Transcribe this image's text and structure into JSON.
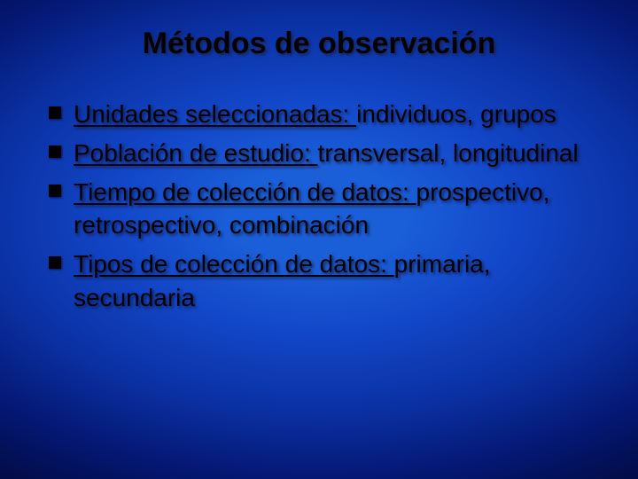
{
  "slide": {
    "title": "Métodos de observación",
    "title_color": "#000000",
    "title_fontsize": 34,
    "body_fontsize": 28,
    "text_color": "#000000",
    "bullet_color": "#000000",
    "bullet_shape": "square",
    "bullet_size": 14,
    "background": {
      "type": "radial-gradient",
      "center_color": "#1a5fd8",
      "mid_color": "#0a2fa0",
      "edge_color": "#010a3a"
    },
    "items": [
      {
        "label": "Unidades seleccionadas",
        "value": "individuos, grupos"
      },
      {
        "label": "Población de estudio",
        "value": "transversal, longitudinal"
      },
      {
        "label": "Tiempo de colección de datos",
        "value": "prospectivo, retrospectivo, combinación"
      },
      {
        "label": "Tipos de colección de datos",
        "value": "primaria, secundaria"
      }
    ]
  }
}
